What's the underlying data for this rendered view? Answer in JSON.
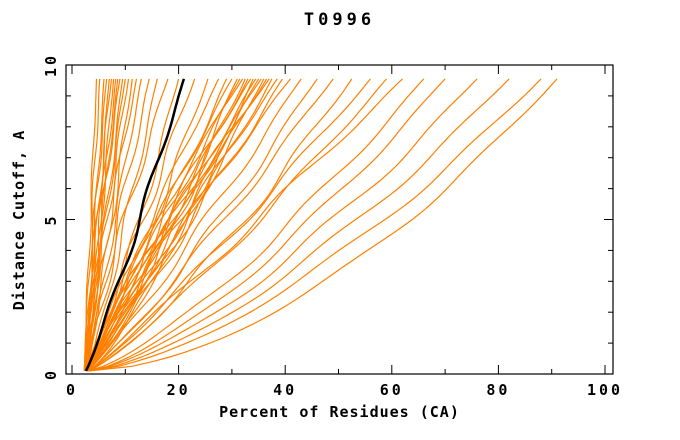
{
  "page": {
    "background": "#ffffff"
  },
  "chart_data": {
    "type": "line",
    "title": "T0996",
    "xlabel": "Percent of Residues (CA)",
    "ylabel": "Distance Cutoff, A",
    "xlim": [
      -1,
      101.5
    ],
    "ylim": [
      0,
      10
    ],
    "x_major_ticks": [
      0,
      20,
      40,
      60,
      80,
      100
    ],
    "x_minor_ticks": [
      10,
      30,
      50,
      70,
      90
    ],
    "y_major_ticks": [
      0,
      5,
      10
    ],
    "y_minor_ticks": [
      1,
      2,
      3,
      4,
      6,
      7,
      8,
      9
    ],
    "grid": false,
    "legend": "none",
    "ticks_mirrored_inward": true,
    "colors": {
      "model_curve": "#ff8000",
      "highlight_curve": "#000000",
      "axis": "#000000",
      "text": "#000000"
    },
    "curve_y_span": [
      0.1,
      9.55
    ],
    "curve_format": [
      "start_x_pct",
      "top_x_pct",
      "shape_exp",
      "wiggle_amp",
      "wiggle_phase"
    ],
    "highlight_curve": [
      2.6,
      21.0,
      0.92,
      0.5,
      1.3
    ],
    "orange_curves": [
      [
        2.3,
        4.6,
        1.05,
        0.2,
        0.5
      ],
      [
        2.4,
        5.2,
        1.1,
        0.3,
        1.2
      ],
      [
        2.5,
        6.0,
        0.95,
        0.25,
        2.0
      ],
      [
        2.3,
        6.5,
        1.15,
        0.35,
        2.8
      ],
      [
        2.6,
        7.0,
        1.0,
        0.3,
        3.5
      ],
      [
        2.4,
        7.4,
        1.2,
        0.4,
        4.2
      ],
      [
        2.5,
        7.8,
        0.9,
        0.3,
        5.0
      ],
      [
        2.7,
        8.2,
        1.1,
        0.45,
        0.9
      ],
      [
        2.4,
        8.6,
        1.0,
        0.3,
        1.7
      ],
      [
        2.6,
        9.0,
        1.25,
        0.5,
        2.4
      ],
      [
        2.5,
        9.5,
        0.95,
        0.35,
        3.1
      ],
      [
        2.8,
        10.0,
        1.1,
        0.4,
        3.9
      ],
      [
        2.5,
        10.6,
        1.05,
        0.5,
        4.6
      ],
      [
        2.7,
        11.3,
        0.9,
        0.45,
        5.3
      ],
      [
        2.6,
        12.1,
        1.15,
        0.5,
        0.3
      ],
      [
        2.8,
        13.0,
        1.0,
        0.4,
        1.1
      ],
      [
        2.6,
        14.5,
        1.0,
        0.6,
        1.9
      ],
      [
        2.9,
        16.0,
        0.9,
        0.5,
        2.6
      ],
      [
        2.7,
        18.0,
        1.15,
        0.7,
        3.3
      ],
      [
        3.0,
        20.0,
        0.85,
        0.6,
        4.1
      ],
      [
        2.8,
        23.0,
        1.0,
        0.8,
        4.8
      ],
      [
        3.1,
        25.5,
        0.9,
        0.7,
        5.5
      ],
      [
        2.9,
        27.5,
        1.1,
        0.6,
        0.7
      ],
      [
        2.8,
        29.0,
        0.95,
        0.8,
        1.4
      ],
      [
        3.0,
        30.0,
        1.1,
        0.7,
        2.1
      ],
      [
        2.9,
        31.0,
        0.85,
        0.9,
        2.9
      ],
      [
        3.1,
        31.5,
        1.05,
        0.8,
        3.6
      ],
      [
        2.8,
        32.0,
        1.2,
        0.7,
        4.3
      ],
      [
        3.0,
        32.5,
        0.9,
        1.0,
        5.1
      ],
      [
        3.2,
        33.0,
        1.0,
        0.8,
        5.8
      ],
      [
        2.9,
        33.5,
        1.15,
        0.9,
        0.4
      ],
      [
        3.1,
        34.0,
        0.8,
        0.7,
        1.0
      ],
      [
        2.8,
        34.5,
        1.05,
        1.0,
        1.8
      ],
      [
        3.0,
        35.0,
        0.95,
        0.8,
        2.5
      ],
      [
        3.2,
        35.5,
        1.1,
        0.9,
        3.2
      ],
      [
        2.9,
        36.0,
        0.85,
        0.7,
        4.0
      ],
      [
        3.1,
        36.5,
        1.0,
        1.1,
        4.7
      ],
      [
        3.0,
        37.0,
        1.2,
        0.8,
        5.4
      ],
      [
        2.8,
        37.5,
        0.9,
        0.9,
        0.1
      ],
      [
        3.2,
        38.5,
        1.05,
        0.8,
        0.8
      ],
      [
        3.0,
        39.5,
        0.95,
        1.0,
        1.5
      ],
      [
        3.1,
        41.0,
        1.1,
        0.9,
        2.3
      ],
      [
        2.9,
        43.0,
        0.9,
        0.8,
        3.0
      ],
      [
        3.0,
        46.0,
        0.85,
        0.9,
        3.7
      ],
      [
        3.2,
        49.0,
        0.9,
        0.8,
        4.4
      ],
      [
        3.0,
        52.5,
        0.8,
        1.0,
        5.2
      ],
      [
        3.3,
        56.0,
        0.9,
        0.9,
        5.9
      ],
      [
        3.1,
        59.0,
        0.85,
        0.8,
        0.6
      ],
      [
        3.2,
        62.0,
        0.95,
        1.0,
        1.3
      ],
      [
        3.0,
        66.0,
        0.75,
        0.9,
        2.0
      ],
      [
        3.3,
        70.0,
        0.72,
        0.8,
        2.7
      ],
      [
        3.1,
        76.0,
        0.7,
        1.0,
        3.4
      ],
      [
        3.2,
        82.0,
        0.68,
        0.9,
        4.1
      ],
      [
        3.0,
        88.0,
        0.65,
        0.8,
        4.9
      ],
      [
        3.3,
        91.0,
        0.58,
        0.7,
        5.6
      ]
    ]
  }
}
